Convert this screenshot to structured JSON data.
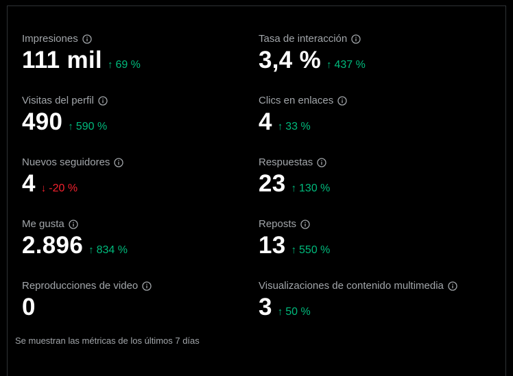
{
  "footnote": "Se muestran las métricas de los últimos 7 días",
  "colors": {
    "positive": "#00ba7c",
    "negative": "#f4212e",
    "value": "#ffffff",
    "label": "#a2a6aa"
  },
  "metrics": {
    "impresiones": {
      "label": "Impresiones",
      "value": "111 mil",
      "change": "69 %",
      "direction": "up",
      "arrow": "↑"
    },
    "tasa_interaccion": {
      "label": "Tasa de interacción",
      "value": "3,4 %",
      "change": "437 %",
      "direction": "up",
      "arrow": "↑"
    },
    "visitas_perfil": {
      "label": "Visitas del perfil",
      "value": "490",
      "change": "590 %",
      "direction": "up",
      "arrow": "↑"
    },
    "clics_enlaces": {
      "label": "Clics en enlaces",
      "value": "4",
      "change": "33 %",
      "direction": "up",
      "arrow": "↑"
    },
    "nuevos_seguidores": {
      "label": "Nuevos seguidores",
      "value": "4",
      "change": "-20 %",
      "direction": "down",
      "arrow": "↓"
    },
    "respuestas": {
      "label": "Respuestas",
      "value": "23",
      "change": "130 %",
      "direction": "up",
      "arrow": "↑"
    },
    "me_gusta": {
      "label": "Me gusta",
      "value": "2.896",
      "change": "834 %",
      "direction": "up",
      "arrow": "↑"
    },
    "reposts": {
      "label": "Reposts",
      "value": "13",
      "change": "550 %",
      "direction": "up",
      "arrow": "↑"
    },
    "reproducciones_video": {
      "label": "Reproducciones de video",
      "value": "0"
    },
    "visualizaciones_multimedia": {
      "label": "Visualizaciones de contenido multimedia",
      "value": "3",
      "change": "50 %",
      "direction": "up",
      "arrow": "↑"
    }
  }
}
